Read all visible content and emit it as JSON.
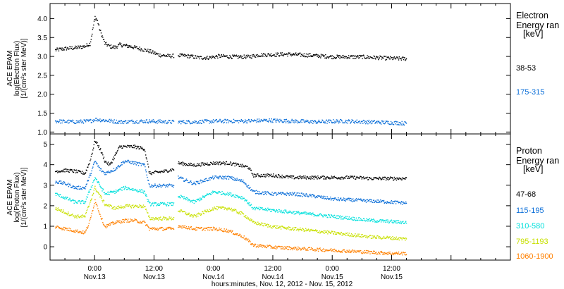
{
  "chart_data": {
    "type": "scatter",
    "xlabel": "hours:minutes, Nov. 12, 2012 - Nov. 15, 2012",
    "xlim": [
      -9,
      84
    ],
    "x_ticks": [
      {
        "hours": 0,
        "time": "0:00",
        "date": "Nov.13"
      },
      {
        "hours": 12,
        "time": "12:00",
        "date": "Nov.13"
      },
      {
        "hours": 24,
        "time": "0:00",
        "date": "Nov.14"
      },
      {
        "hours": 36,
        "time": "12:00",
        "date": "Nov.14"
      },
      {
        "hours": 48,
        "time": "0:00",
        "date": "Nov.15"
      },
      {
        "hours": 60,
        "time": "12:00",
        "date": "Nov.15"
      }
    ],
    "data_gap_hours": [
      15.9,
      16.8
    ],
    "panels": [
      {
        "name": "electron",
        "ylabel_lines": [
          "ACE EPAM",
          "log(Electron Flux)",
          "[1/(cm²s ster MeV)]"
        ],
        "ylim": [
          0.95,
          4.4
        ],
        "yticks": [
          "1.0",
          "1.5",
          "2.0",
          "2.5",
          "3.0",
          "3.5",
          "4.0"
        ],
        "legend_title": [
          "Electron",
          "Energy ran",
          "[keV]"
        ],
        "series": [
          {
            "name": "38-53",
            "color": "#000000",
            "points": [
              [
                -8,
                3.18
              ],
              [
                -6,
                3.22
              ],
              [
                -4,
                3.24
              ],
              [
                -2,
                3.28
              ],
              [
                -1,
                3.35
              ],
              [
                -0.5,
                3.7
              ],
              [
                0,
                4.05
              ],
              [
                0.5,
                3.95
              ],
              [
                1,
                3.7
              ],
              [
                2,
                3.35
              ],
              [
                3,
                3.28
              ],
              [
                4,
                3.25
              ],
              [
                5,
                3.32
              ],
              [
                7,
                3.28
              ],
              [
                9,
                3.22
              ],
              [
                11,
                3.15
              ],
              [
                13,
                3.05
              ],
              [
                15,
                3.02
              ],
              [
                16.8,
                3.04
              ],
              [
                19,
                3.02
              ],
              [
                21,
                2.98
              ],
              [
                23,
                2.98
              ],
              [
                25,
                3.02
              ],
              [
                28,
                3.0
              ],
              [
                31,
                3.0
              ],
              [
                33,
                3.05
              ],
              [
                36,
                3.06
              ],
              [
                39,
                3.07
              ],
              [
                42,
                3.05
              ],
              [
                45,
                3.03
              ],
              [
                48,
                3.0
              ],
              [
                51,
                3.0
              ],
              [
                54,
                3.0
              ],
              [
                57,
                2.98
              ],
              [
                60,
                2.96
              ],
              [
                63,
                2.95
              ]
            ]
          },
          {
            "name": "175-315",
            "color": "#0a6ed8",
            "points": [
              [
                -8,
                1.3
              ],
              [
                -4,
                1.28
              ],
              [
                -1,
                1.3
              ],
              [
                0,
                1.35
              ],
              [
                2,
                1.32
              ],
              [
                5,
                1.28
              ],
              [
                10,
                1.3
              ],
              [
                15,
                1.28
              ],
              [
                16.8,
                1.28
              ],
              [
                20,
                1.28
              ],
              [
                25,
                1.3
              ],
              [
                30,
                1.3
              ],
              [
                35,
                1.32
              ],
              [
                40,
                1.3
              ],
              [
                45,
                1.28
              ],
              [
                50,
                1.3
              ],
              [
                55,
                1.28
              ],
              [
                60,
                1.26
              ],
              [
                63,
                1.24
              ]
            ]
          }
        ]
      },
      {
        "name": "proton",
        "ylabel_lines": [
          "ACE EPAM",
          "log(Proton Flux)",
          "[1/(cm²s ster MeV)]"
        ],
        "ylim": [
          -0.65,
          5.5
        ],
        "yticks": [
          "0",
          "1",
          "2",
          "3",
          "4",
          "5"
        ],
        "legend_title": [
          "Proton",
          "Energy ran",
          "[keV]"
        ],
        "series": [
          {
            "name": "47-68",
            "color": "#000000",
            "points": [
              [
                -8,
                3.7
              ],
              [
                -6,
                3.75
              ],
              [
                -4,
                3.7
              ],
              [
                -2,
                3.6
              ],
              [
                -1,
                4.2
              ],
              [
                0,
                5.2
              ],
              [
                1,
                4.8
              ],
              [
                2,
                4.2
              ],
              [
                3,
                4.0
              ],
              [
                5,
                4.9
              ],
              [
                8,
                4.9
              ],
              [
                10,
                4.8
              ],
              [
                11,
                3.6
              ],
              [
                14,
                3.7
              ],
              [
                15.9,
                3.8
              ],
              [
                16.8,
                4.1
              ],
              [
                20,
                4.0
              ],
              [
                24,
                4.1
              ],
              [
                27,
                4.1
              ],
              [
                31,
                3.9
              ],
              [
                32,
                3.5
              ],
              [
                36,
                3.5
              ],
              [
                40,
                3.4
              ],
              [
                44,
                3.4
              ],
              [
                48,
                3.4
              ],
              [
                52,
                3.4
              ],
              [
                56,
                3.35
              ],
              [
                60,
                3.35
              ],
              [
                63,
                3.35
              ]
            ]
          },
          {
            "name": "115-195",
            "color": "#0a6ed8",
            "points": [
              [
                -8,
                3.2
              ],
              [
                -6,
                3.1
              ],
              [
                -4,
                2.9
              ],
              [
                -2,
                2.9
              ],
              [
                -1,
                3.5
              ],
              [
                0,
                4.2
              ],
              [
                1,
                3.8
              ],
              [
                2,
                3.6
              ],
              [
                4,
                3.8
              ],
              [
                6,
                4.2
              ],
              [
                8,
                4.1
              ],
              [
                10,
                4.0
              ],
              [
                11,
                3.0
              ],
              [
                13,
                3.0
              ],
              [
                15.9,
                3.0
              ],
              [
                16.8,
                3.4
              ],
              [
                20,
                3.1
              ],
              [
                24,
                3.4
              ],
              [
                27,
                3.4
              ],
              [
                30,
                3.2
              ],
              [
                32,
                2.7
              ],
              [
                36,
                2.6
              ],
              [
                40,
                2.6
              ],
              [
                44,
                2.5
              ],
              [
                48,
                2.35
              ],
              [
                52,
                2.3
              ],
              [
                56,
                2.25
              ],
              [
                60,
                2.2
              ],
              [
                63,
                2.15
              ]
            ]
          },
          {
            "name": "310-580",
            "color": "#00e0dc",
            "points": [
              [
                -8,
                2.6
              ],
              [
                -6,
                2.4
              ],
              [
                -4,
                2.2
              ],
              [
                -2,
                2.2
              ],
              [
                -1,
                2.8
              ],
              [
                0,
                3.4
              ],
              [
                1,
                3.0
              ],
              [
                2,
                2.6
              ],
              [
                4,
                2.7
              ],
              [
                6,
                2.9
              ],
              [
                8,
                2.8
              ],
              [
                10,
                2.7
              ],
              [
                11,
                2.1
              ],
              [
                13,
                2.1
              ],
              [
                15.9,
                2.1
              ],
              [
                16.8,
                2.5
              ],
              [
                20,
                2.2
              ],
              [
                24,
                2.7
              ],
              [
                27,
                2.6
              ],
              [
                30,
                2.4
              ],
              [
                32,
                1.9
              ],
              [
                36,
                1.8
              ],
              [
                40,
                1.7
              ],
              [
                44,
                1.6
              ],
              [
                48,
                1.5
              ],
              [
                52,
                1.4
              ],
              [
                56,
                1.3
              ],
              [
                60,
                1.25
              ],
              [
                63,
                1.2
              ]
            ]
          },
          {
            "name": "795-1193",
            "color": "#c8e000",
            "points": [
              [
                -8,
                1.9
              ],
              [
                -6,
                1.7
              ],
              [
                -4,
                1.5
              ],
              [
                -2,
                1.5
              ],
              [
                -1,
                2.2
              ],
              [
                0,
                2.9
              ],
              [
                1,
                2.5
              ],
              [
                2,
                2.1
              ],
              [
                4,
                1.9
              ],
              [
                6,
                2.0
              ],
              [
                8,
                2.0
              ],
              [
                10,
                2.0
              ],
              [
                11,
                1.4
              ],
              [
                13,
                1.4
              ],
              [
                15.9,
                1.4
              ],
              [
                16.8,
                1.8
              ],
              [
                20,
                1.5
              ],
              [
                24,
                1.9
              ],
              [
                27,
                1.9
              ],
              [
                30,
                1.6
              ],
              [
                32,
                1.2
              ],
              [
                36,
                1.0
              ],
              [
                40,
                0.9
              ],
              [
                44,
                0.8
              ],
              [
                48,
                0.7
              ],
              [
                52,
                0.6
              ],
              [
                56,
                0.5
              ],
              [
                60,
                0.45
              ],
              [
                63,
                0.4
              ]
            ]
          },
          {
            "name": "1060-1900",
            "color": "#ff8000",
            "points": [
              [
                -8,
                1.0
              ],
              [
                -6,
                0.9
              ],
              [
                -4,
                0.8
              ],
              [
                -2,
                0.7
              ],
              [
                -1,
                1.3
              ],
              [
                0,
                2.3
              ],
              [
                1,
                1.6
              ],
              [
                2,
                1.0
              ],
              [
                4,
                1.2
              ],
              [
                6,
                1.3
              ],
              [
                8,
                1.3
              ],
              [
                10,
                1.2
              ],
              [
                11,
                0.9
              ],
              [
                13,
                0.9
              ],
              [
                15.9,
                0.9
              ],
              [
                16.8,
                1.05
              ],
              [
                20,
                0.9
              ],
              [
                24,
                0.9
              ],
              [
                27,
                0.8
              ],
              [
                30,
                0.5
              ],
              [
                32,
                0.1
              ],
              [
                36,
                0.0
              ],
              [
                40,
                -0.05
              ],
              [
                44,
                -0.1
              ],
              [
                48,
                -0.15
              ],
              [
                52,
                -0.2
              ],
              [
                56,
                -0.25
              ],
              [
                60,
                -0.3
              ],
              [
                63,
                -0.3
              ]
            ]
          }
        ]
      }
    ]
  }
}
